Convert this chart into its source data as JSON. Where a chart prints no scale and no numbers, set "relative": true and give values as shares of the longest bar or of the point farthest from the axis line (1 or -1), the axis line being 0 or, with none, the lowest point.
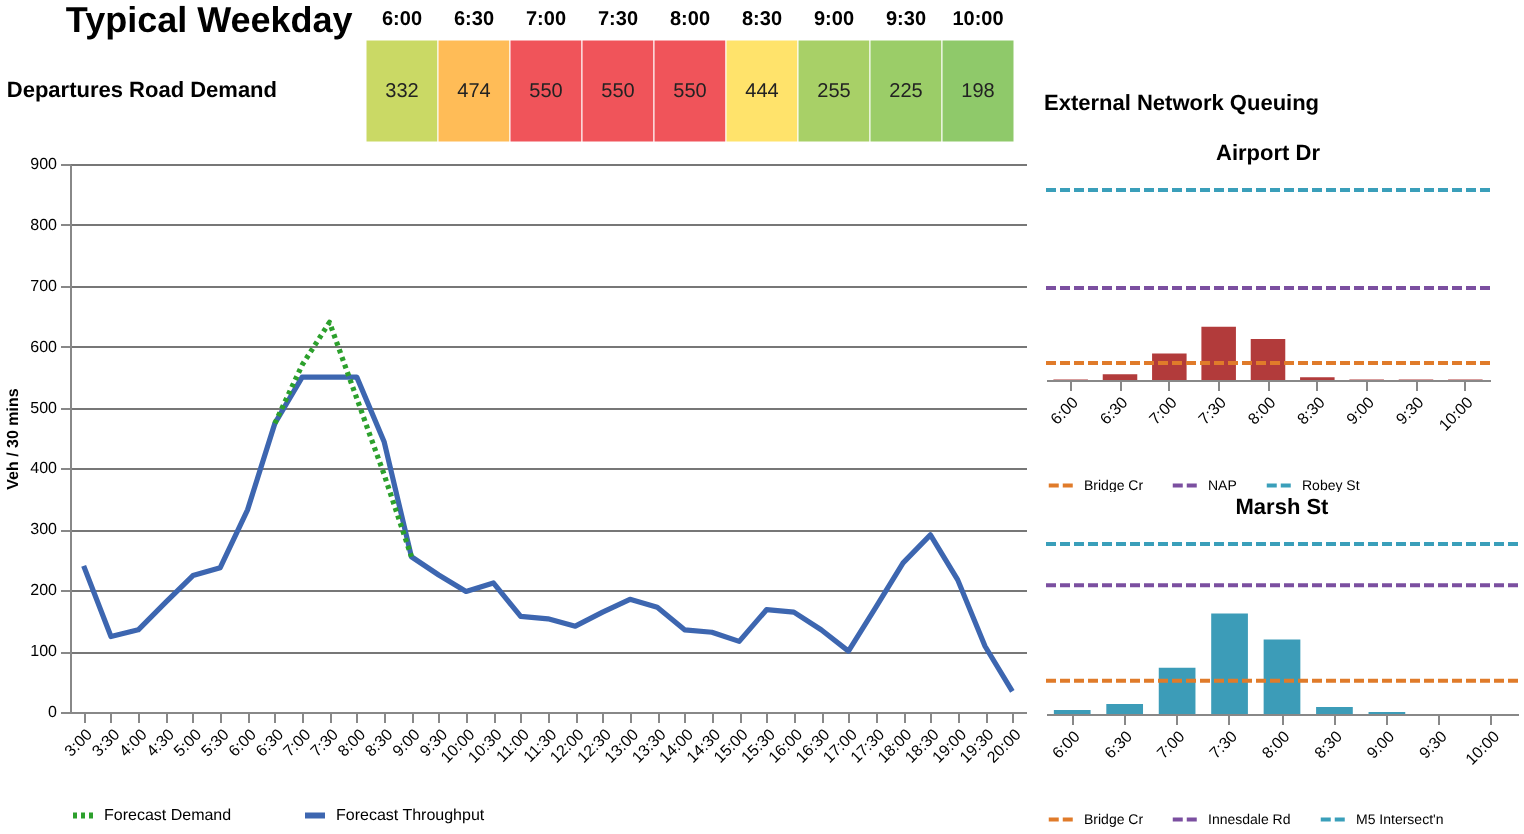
{
  "chart_data": [
    {
      "type": "heatmap",
      "title": "Typical Weekday",
      "categories": [
        "6:00",
        "6:30",
        "7:00",
        "7:30",
        "8:00",
        "8:30",
        "9:00",
        "9:30",
        "10:00"
      ],
      "y_categories": [
        "Departures Road Demand"
      ],
      "cells": [
        [
          332,
          474,
          550,
          550,
          550,
          444,
          255,
          225,
          198
        ]
      ],
      "data_labels": true
    },
    {
      "type": "line",
      "categories": [
        "3:00",
        "3:30",
        "4:00",
        "4:30",
        "5:00",
        "5:30",
        "6:00",
        "6:30",
        "7:00",
        "7:30",
        "8:00",
        "8:30",
        "9:00",
        "9:30",
        "10:00",
        "10:30",
        "11:00",
        "11:30",
        "12:00",
        "12:30",
        "13:00",
        "13:30",
        "14:00",
        "14:30",
        "15:00",
        "15:30",
        "16:00",
        "16:30",
        "17:00",
        "17:30",
        "18:00",
        "18:30",
        "19:00",
        "19:30",
        "20:00"
      ],
      "series": [
        {
          "name": "Forecast Demand",
          "color": "#2ca02c",
          "line_style": "dotted",
          "values": [
            null,
            null,
            null,
            null,
            null,
            null,
            null,
            474,
            570,
            640,
            515,
            390,
            255,
            null,
            null,
            null,
            null,
            null,
            null,
            null,
            null,
            null,
            null,
            null,
            null,
            null,
            null,
            null,
            null,
            null,
            null,
            null,
            null,
            null,
            null
          ]
        },
        {
          "name": "Forecast Throughput",
          "color": "#3d66b0",
          "line_style": "solid",
          "values": [
            240,
            124,
            135,
            180,
            224,
            237,
            332,
            474,
            550,
            550,
            550,
            444,
            255,
            225,
            198,
            212,
            157,
            153,
            141,
            164,
            185,
            172,
            135,
            131,
            116,
            168,
            164,
            135,
            100,
            172,
            245,
            291,
            217,
            108,
            34
          ]
        }
      ],
      "ylabel": "Veh / 30 mins",
      "ylim": [
        0,
        900
      ],
      "yticks": [
        0,
        100,
        200,
        300,
        400,
        500,
        600,
        700,
        800,
        900
      ],
      "grid": "y",
      "legend": "bottom"
    },
    {
      "type": "bar",
      "annotations": [
        "External Network Queuing"
      ],
      "title": "Airport Dr",
      "categories": [
        "6:00",
        "6:30",
        "7:00",
        "7:30",
        "8:00",
        "8:30",
        "9:00",
        "9:30",
        "10:00"
      ],
      "values": [
        0.01,
        0.11,
        0.5,
        1,
        0.77,
        0.05,
        0.01,
        0.01,
        0.01
      ],
      "color": "#b23b3b",
      "relative": true,
      "ref_lines": [
        {
          "axis": "y",
          "value": 0.32,
          "label": "Bridge Cr",
          "color": "#e07b2a",
          "line_style": "dashed"
        },
        {
          "axis": "y",
          "value": 1.73,
          "label": "NAP",
          "color": "#7b4fa0",
          "line_style": "dashed"
        },
        {
          "axis": "y",
          "value": 3.57,
          "label": "Robey St",
          "color": "#3a9fba",
          "line_style": "dashed"
        }
      ],
      "legend": "bottom"
    },
    {
      "type": "bar",
      "title": "Marsh St",
      "categories": [
        "6:00",
        "6:30",
        "7:00",
        "7:30",
        "8:00",
        "8:30",
        "9:00",
        "9:30",
        "10:00"
      ],
      "values": [
        0.04,
        0.1,
        0.46,
        1,
        0.74,
        0.07,
        0.02,
        0,
        0
      ],
      "color": "#3c9cb8",
      "relative": true,
      "ref_lines": [
        {
          "axis": "y",
          "value": 0.33,
          "label": "Bridge Cr",
          "color": "#e07b2a",
          "line_style": "dashed"
        },
        {
          "axis": "y",
          "value": 1.28,
          "label": "Innesdale Rd",
          "color": "#7b4fa0",
          "line_style": "dashed"
        },
        {
          "axis": "y",
          "value": 1.69,
          "label": "M5 Intersect'n",
          "color": "#3a9fba",
          "line_style": "dashed"
        }
      ],
      "legend": "bottom"
    }
  ]
}
